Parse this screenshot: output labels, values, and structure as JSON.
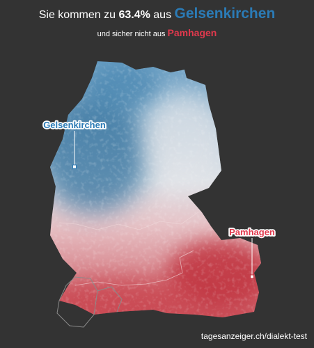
{
  "header": {
    "prefix": "Sie kommen zu",
    "percent": "63.4%",
    "middle": "aus",
    "best_city": "Gelsenkirchen",
    "best_color": "#2b7bb6",
    "sub_prefix": "und sicher nicht aus",
    "worst_city": "Pamhagen",
    "worst_color": "#e0394d"
  },
  "map": {
    "labels": {
      "best": "Gelsenkirchen",
      "worst": "Pamhagen"
    },
    "colors": {
      "similar": "#2f6f9c",
      "neutral": "#e2e4e8",
      "dissimilar": "#c0323e",
      "border": "#8a8a8a"
    }
  },
  "footer": {
    "source": "tagesanzeiger.ch/dialekt-test"
  }
}
